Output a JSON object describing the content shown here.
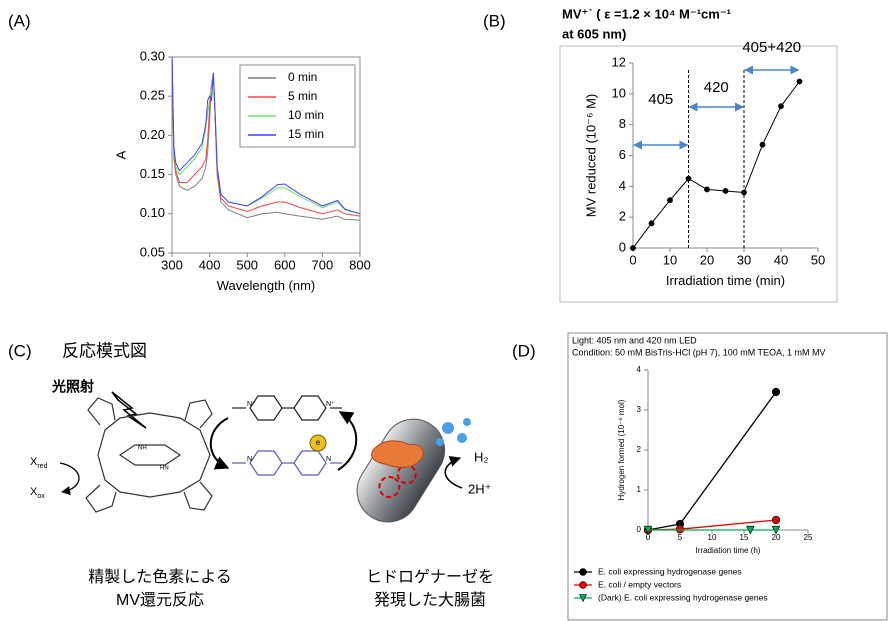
{
  "panel_labels": [
    "(A)",
    "(B)",
    "(C)",
    "(D)"
  ],
  "chart_data": [
    {
      "type": "line",
      "xlabel": "Wavelength (nm)",
      "ylabel": "A",
      "x": [
        300,
        305,
        310,
        320,
        340,
        360,
        380,
        390,
        395,
        400,
        405,
        410,
        415,
        420,
        430,
        450,
        500,
        540,
        580,
        600,
        640,
        700,
        740,
        760,
        800
      ],
      "xlim": [
        300,
        800
      ],
      "xticks": [
        300,
        400,
        500,
        600,
        700,
        800
      ],
      "ylim": [
        0.05,
        0.3
      ],
      "yticks": [
        0.05,
        {
          "value": 0.1,
          "label": "0.10"
        },
        0.15,
        {
          "value": 0.2,
          "label": "0.20"
        },
        0.25,
        {
          "value": 0.3,
          "label": "0.30"
        }
      ],
      "legend": "upper right",
      "series": [
        {
          "name": "0 min",
          "color": "#7f7f7f",
          "values": [
            0.3,
            0.17,
            0.15,
            0.135,
            0.13,
            0.135,
            0.145,
            0.16,
            0.18,
            0.22,
            0.265,
            0.28,
            0.22,
            0.15,
            0.115,
            0.105,
            0.095,
            0.1,
            0.102,
            0.1,
            0.097,
            0.093,
            0.097,
            0.093,
            0.092
          ]
        },
        {
          "name": "5 min",
          "color": "#ff4040",
          "values": [
            0.3,
            0.175,
            0.155,
            0.14,
            0.14,
            0.15,
            0.16,
            0.17,
            0.195,
            0.235,
            0.265,
            0.28,
            0.22,
            0.155,
            0.12,
            0.11,
            0.103,
            0.11,
            0.115,
            0.115,
            0.108,
            0.1,
            0.105,
            0.1,
            0.097
          ]
        },
        {
          "name": "10 min",
          "color": "#66e066",
          "values": [
            0.3,
            0.18,
            0.16,
            0.15,
            0.16,
            0.17,
            0.185,
            0.21,
            0.23,
            0.245,
            0.26,
            0.28,
            0.225,
            0.16,
            0.125,
            0.115,
            0.11,
            0.12,
            0.133,
            0.133,
            0.122,
            0.108,
            0.115,
            0.105,
            0.1
          ]
        },
        {
          "name": "15 min",
          "color": "#4040ff",
          "values": [
            0.3,
            0.185,
            0.165,
            0.155,
            0.165,
            0.175,
            0.19,
            0.215,
            0.245,
            0.25,
            0.245,
            0.28,
            0.225,
            0.16,
            0.125,
            0.115,
            0.11,
            0.122,
            0.137,
            0.138,
            0.125,
            0.11,
            0.117,
            0.106,
            0.1
          ]
        }
      ]
    },
    {
      "type": "line",
      "title": [
        "MV⁺˙ ( ε =1.2 × 10⁴ M⁻¹cm⁻¹",
        "at 605 nm)"
      ],
      "annotations": [
        "405",
        "420",
        "405+420"
      ],
      "xlabel": "Irradiation time (min)",
      "ylabel": "MV reduced (10⁻⁶ M)",
      "x": [
        0,
        5,
        10,
        15,
        20,
        25,
        30,
        35,
        40,
        45
      ],
      "xlim": [
        0,
        50
      ],
      "xticks": [
        0,
        10,
        20,
        30,
        40,
        50
      ],
      "ylim": [
        0,
        12
      ],
      "yticks": [
        0,
        2,
        4,
        6,
        8,
        10,
        12
      ],
      "series": [
        {
          "color": "#000000",
          "marker": "circle",
          "values": [
            0,
            1.6,
            3.1,
            4.5,
            3.8,
            3.7,
            3.6,
            6.7,
            9.2,
            10.8
          ]
        }
      ]
    },
    {
      "type": "line",
      "title": [
        "Light: 405 nm and 420 nm LED",
        "Condition: 50 mM BisTris-HCl (pH 7), 100 mM TEOA, 1 mM MV"
      ],
      "xlabel": "Irradiation time (h)",
      "ylabel": "Hydrogen formed (10⁻⁶ mol)",
      "xlim": [
        0,
        25
      ],
      "xticks": [
        0,
        5,
        10,
        15,
        20,
        25
      ],
      "ylim": [
        0,
        4
      ],
      "yticks": [
        0,
        1,
        2,
        3,
        4
      ],
      "legend": "lower left",
      "series": [
        {
          "name": "E. coli expressing hydrogenase genes",
          "color": "#000000",
          "marker": "circle",
          "x": [
            0,
            5,
            20
          ],
          "values": [
            0,
            0.15,
            3.45
          ]
        },
        {
          "name": "E. coli / empty vectors",
          "color": "#e00000",
          "marker": "circle",
          "x": [
            0,
            5,
            20
          ],
          "values": [
            0,
            0.02,
            0.25
          ]
        },
        {
          "name": "(Dark) E. coli expressing hydrogenase genes",
          "color": "#00b050",
          "marker": "triangle",
          "x": [
            0,
            16,
            20
          ],
          "values": [
            0,
            0,
            0
          ]
        }
      ]
    }
  ],
  "diagram": {
    "title": "反応模式図",
    "light": "光照射",
    "x_red": [
      "X",
      "red"
    ],
    "x_ox": [
      "X",
      "ox"
    ],
    "h2": "H₂",
    "protons": "2H⁺",
    "electron": "e",
    "caption_left": [
      "精製した色素による",
      "MV還元反応"
    ],
    "caption_right": [
      "ヒドロゲナーゼを",
      "発現した大腸菌"
    ]
  }
}
